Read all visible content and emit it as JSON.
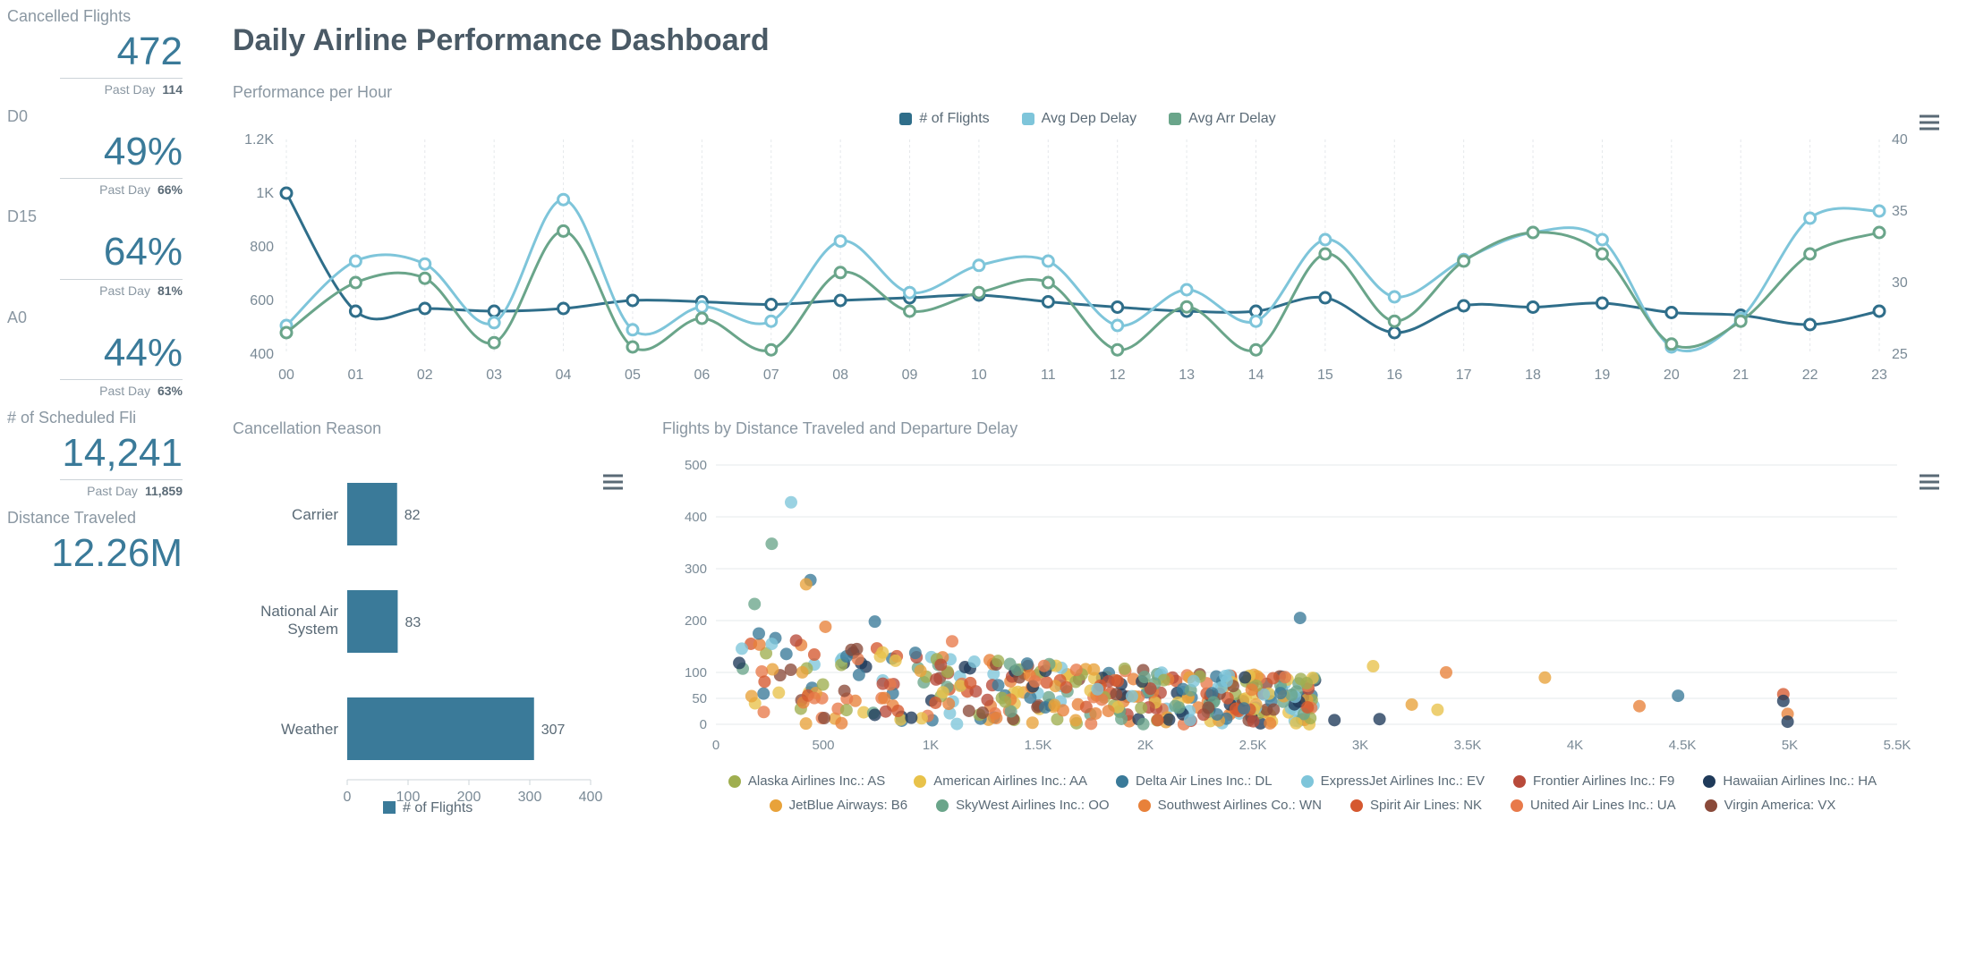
{
  "header": {
    "title": "Daily Airline Performance Dashboard"
  },
  "sidebar": {
    "metrics": [
      {
        "label": "Cancelled Flights",
        "value": "472",
        "sub_label": "Past Day",
        "sub_value": "114"
      },
      {
        "label": "D0",
        "value": "49%",
        "sub_label": "Past Day",
        "sub_value": "66%"
      },
      {
        "label": "D15",
        "value": "64%",
        "sub_label": "Past Day",
        "sub_value": "81%"
      },
      {
        "label": "A0",
        "value": "44%",
        "sub_label": "Past Day",
        "sub_value": "63%"
      },
      {
        "label": "# of Scheduled Fli",
        "value": "14,241",
        "sub_label": "Past Day",
        "sub_value": "11,859"
      },
      {
        "label": "Distance Traveled",
        "value": "12.26M",
        "sub_label": "",
        "sub_value": ""
      }
    ]
  },
  "line_chart": {
    "title": "Performance per Hour",
    "type": "line",
    "x_labels": [
      "00",
      "01",
      "02",
      "03",
      "04",
      "05",
      "06",
      "07",
      "08",
      "09",
      "10",
      "11",
      "12",
      "13",
      "14",
      "15",
      "16",
      "17",
      "18",
      "19",
      "20",
      "21",
      "22",
      "23"
    ],
    "y_left": {
      "min": 400,
      "max": 1200,
      "ticks": [
        400,
        600,
        800,
        1000,
        1200
      ],
      "tick_labels": [
        "400",
        "600",
        "800",
        "1K",
        "1.2K"
      ]
    },
    "y_right": {
      "min": 25,
      "max": 40,
      "ticks": [
        25,
        30,
        35,
        40
      ]
    },
    "grid_color": "#e5e8eb",
    "background_color": "#ffffff",
    "marker_radius": 6,
    "line_width": 3,
    "series": [
      {
        "name": "# of Flights",
        "axis": "left",
        "color": "#2f6e8a",
        "values": [
          1000,
          560,
          570,
          560,
          570,
          600,
          595,
          585,
          600,
          610,
          620,
          595,
          575,
          560,
          560,
          610,
          480,
          580,
          575,
          590,
          555,
          545,
          510,
          560
        ]
      },
      {
        "name": "Avg Dep Delay",
        "axis": "right",
        "color": "#7ec5da",
        "values": [
          27,
          31.5,
          31.3,
          27.2,
          35.8,
          26.7,
          28.3,
          27.3,
          32.9,
          29.3,
          31.2,
          31.5,
          27,
          29.5,
          27.3,
          33,
          29,
          31.6,
          33.5,
          33,
          25.5,
          27.5,
          34.5,
          35
        ]
      },
      {
        "name": "Avg Arr Delay",
        "axis": "right",
        "color": "#6aa58a",
        "values": [
          26.5,
          30,
          30.3,
          25.8,
          33.6,
          25.5,
          27.5,
          25.3,
          30.7,
          28,
          29.3,
          30,
          25.3,
          28.3,
          25.3,
          32,
          27.3,
          31.5,
          33.5,
          32,
          25.7,
          27.3,
          32,
          33.5
        ]
      }
    ]
  },
  "bar_chart": {
    "title": "Cancellation Reason",
    "type": "bar-horizontal",
    "x": {
      "min": 0,
      "max": 400,
      "ticks": [
        0,
        100,
        200,
        300,
        400
      ]
    },
    "bar_color": "#3a7a99",
    "label_color": "#5a6a76",
    "value_fontsize": 16,
    "legend_label": "# of Flights",
    "categories": [
      {
        "label": "Carrier",
        "value": 82
      },
      {
        "label": "National Air System",
        "value": 83
      },
      {
        "label": "Weather",
        "value": 307
      }
    ]
  },
  "scatter_chart": {
    "title": "Flights by Distance Traveled and Departure Delay",
    "type": "scatter",
    "x": {
      "min": 0,
      "max": 5500,
      "ticks": [
        0,
        500,
        1000,
        1500,
        2000,
        2500,
        3000,
        3500,
        4000,
        4500,
        5000,
        5500
      ],
      "tick_labels": [
        "0",
        "500",
        "1K",
        "1.5K",
        "2K",
        "2.5K",
        "3K",
        "3.5K",
        "4K",
        "4.5K",
        "5K",
        "5.5K"
      ]
    },
    "y": {
      "min": 0,
      "max": 500,
      "ticks": [
        0,
        50,
        100,
        200,
        300,
        400,
        500
      ]
    },
    "grid_color": "#e5e8eb",
    "marker_radius": 7,
    "marker_opacity": 0.78,
    "airlines": [
      {
        "name": "Alaska Airlines Inc.: AS",
        "color": "#9fae4f"
      },
      {
        "name": "American Airlines Inc.: AA",
        "color": "#e8c24a"
      },
      {
        "name": "Delta Air Lines Inc.: DL",
        "color": "#3a7a99"
      },
      {
        "name": "ExpressJet Airlines Inc.: EV",
        "color": "#7ec5da"
      },
      {
        "name": "Frontier Airlines Inc.: F9",
        "color": "#b84a3a"
      },
      {
        "name": "Hawaiian Airlines Inc.: HA",
        "color": "#1f3a5a"
      },
      {
        "name": "JetBlue Airways: B6",
        "color": "#e8a23a"
      },
      {
        "name": "SkyWest Airlines Inc.: OO",
        "color": "#6aa58a"
      },
      {
        "name": "Southwest Airlines Co.: WN",
        "color": "#e8813a"
      },
      {
        "name": "Spirit Air Lines: NK",
        "color": "#d5582f"
      },
      {
        "name": "United Air Lines Inc.: UA",
        "color": "#e87a4a"
      },
      {
        "name": "Virgin America: VX",
        "color": "#8a4a3a"
      }
    ],
    "highlight_points": [
      {
        "x": 350,
        "y": 428,
        "airline": 3
      },
      {
        "x": 260,
        "y": 348,
        "airline": 7
      },
      {
        "x": 440,
        "y": 278,
        "airline": 2
      },
      {
        "x": 420,
        "y": 270,
        "airline": 6
      },
      {
        "x": 180,
        "y": 232,
        "airline": 7
      },
      {
        "x": 2720,
        "y": 205,
        "airline": 2
      },
      {
        "x": 740,
        "y": 198,
        "airline": 2
      },
      {
        "x": 510,
        "y": 188,
        "airline": 8
      },
      {
        "x": 200,
        "y": 175,
        "airline": 2
      },
      {
        "x": 1100,
        "y": 160,
        "airline": 10
      },
      {
        "x": 260,
        "y": 155,
        "airline": 3
      },
      {
        "x": 3060,
        "y": 112,
        "airline": 1
      },
      {
        "x": 3400,
        "y": 100,
        "airline": 8
      },
      {
        "x": 3860,
        "y": 90,
        "airline": 6
      },
      {
        "x": 4300,
        "y": 35,
        "airline": 8
      },
      {
        "x": 4480,
        "y": 55,
        "airline": 2
      },
      {
        "x": 4970,
        "y": 58,
        "airline": 9
      },
      {
        "x": 4970,
        "y": 45,
        "airline": 5
      },
      {
        "x": 4990,
        "y": 20,
        "airline": 8
      },
      {
        "x": 4990,
        "y": 5,
        "airline": 5
      },
      {
        "x": 3360,
        "y": 28,
        "airline": 1
      },
      {
        "x": 3240,
        "y": 38,
        "airline": 6
      },
      {
        "x": 3090,
        "y": 10,
        "airline": 5
      },
      {
        "x": 2880,
        "y": 8,
        "airline": 5
      }
    ],
    "dense_cluster": {
      "x_from": 80,
      "x_to": 2800,
      "count": 420
    }
  }
}
